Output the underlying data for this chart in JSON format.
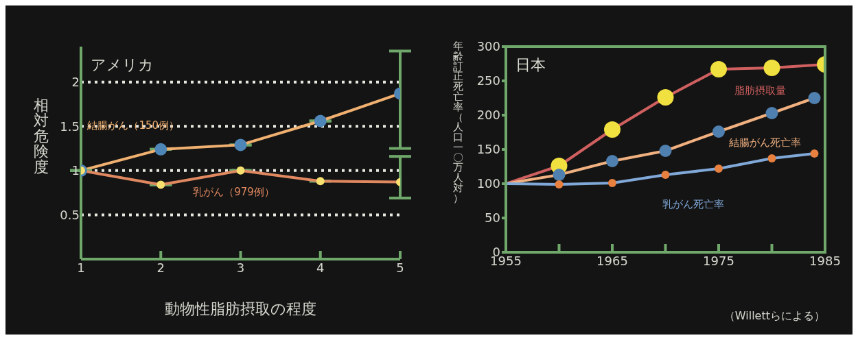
{
  "chart_data": [
    {
      "type": "line",
      "title": "アメリカ",
      "xlabel": "動物性脂肪摂取の程度",
      "ylabel": "相対危険度",
      "x": [
        1,
        2,
        3,
        4,
        5
      ],
      "xlim": [
        1,
        5
      ],
      "xticks": [
        1,
        2,
        3,
        4,
        5
      ],
      "ylim": [
        0,
        2.4
      ],
      "yticks": [
        0.5,
        1,
        1.5,
        2
      ],
      "grid": "y",
      "marker": "circle",
      "line_style": "solid",
      "legend": false,
      "series": [
        {
          "name": "結腸がん（150例）",
          "color": "#f0b070",
          "colors": [
            "#4f86b8",
            "#4f86b8",
            "#4f86b8",
            "#4f86b8",
            "#4f86b8"
          ],
          "values": [
            1,
            1.24,
            1.29,
            1.56,
            1.87
          ],
          "errors": [
            null,
            null,
            null,
            null,
            [
              1.25,
              2.35
            ]
          ]
        },
        {
          "name": "乳がん（979例）",
          "color": "#e08860",
          "colors": [
            "#f5e070",
            "#f5e070",
            "#f5e070",
            "#f5e070",
            "#f5e070"
          ],
          "values": [
            1,
            0.84,
            1,
            0.88,
            0.87
          ],
          "errors": [
            null,
            null,
            null,
            null,
            [
              0.69,
              1.16
            ]
          ]
        }
      ]
    },
    {
      "type": "line",
      "title": "日本",
      "ylabel": "年齢訂正死亡率（人口一〇万人対）",
      "xlim": [
        1955,
        1985
      ],
      "xticks": [
        1955,
        {
          "value": 1960,
          "label": null
        },
        1965,
        {
          "value": 1970,
          "label": null
        },
        1975,
        {
          "value": 1980,
          "label": null
        },
        1985
      ],
      "ylim": [
        0,
        300
      ],
      "yticks": [
        0,
        50,
        100,
        150,
        200,
        250,
        300
      ],
      "grid": false,
      "marker": "circle",
      "line_style": "solid",
      "legend": false,
      "annotations": [
        "（Willettらによる）"
      ],
      "series": [
        {
          "name": "脂肪摂取量",
          "color": "#d06060",
          "x": [
            1955,
            1960,
            1965,
            1970,
            1975,
            1980,
            1985
          ],
          "colors": [
            null,
            "#f0e040",
            "#f0e040",
            "#f0e040",
            "#f0e040",
            "#f0e040",
            "#f0e040"
          ],
          "values": [
            100,
            126,
            179,
            226,
            267,
            269,
            274
          ]
        },
        {
          "name": "結腸がん死亡率",
          "color": "#f0b080",
          "x": [
            1955,
            1960,
            1965,
            1970,
            1975,
            1980,
            1984
          ],
          "colors": [
            null,
            "#5080b0",
            "#5080b0",
            "#5080b0",
            "#5080b0",
            "#5080b0",
            "#5080b0"
          ],
          "values": [
            100,
            113,
            133,
            148,
            176,
            203,
            225
          ]
        },
        {
          "name": "乳がん死亡率",
          "color": "#80a8d8",
          "x": [
            1955,
            1960,
            1965,
            1970,
            1975,
            1980,
            1984
          ],
          "colors": [
            null,
            "#e88040",
            "#e88040",
            "#e88040",
            "#e88040",
            "#e88040",
            "#e88040"
          ],
          "values": [
            100,
            99,
            101,
            113,
            122,
            137,
            144
          ]
        }
      ]
    }
  ]
}
